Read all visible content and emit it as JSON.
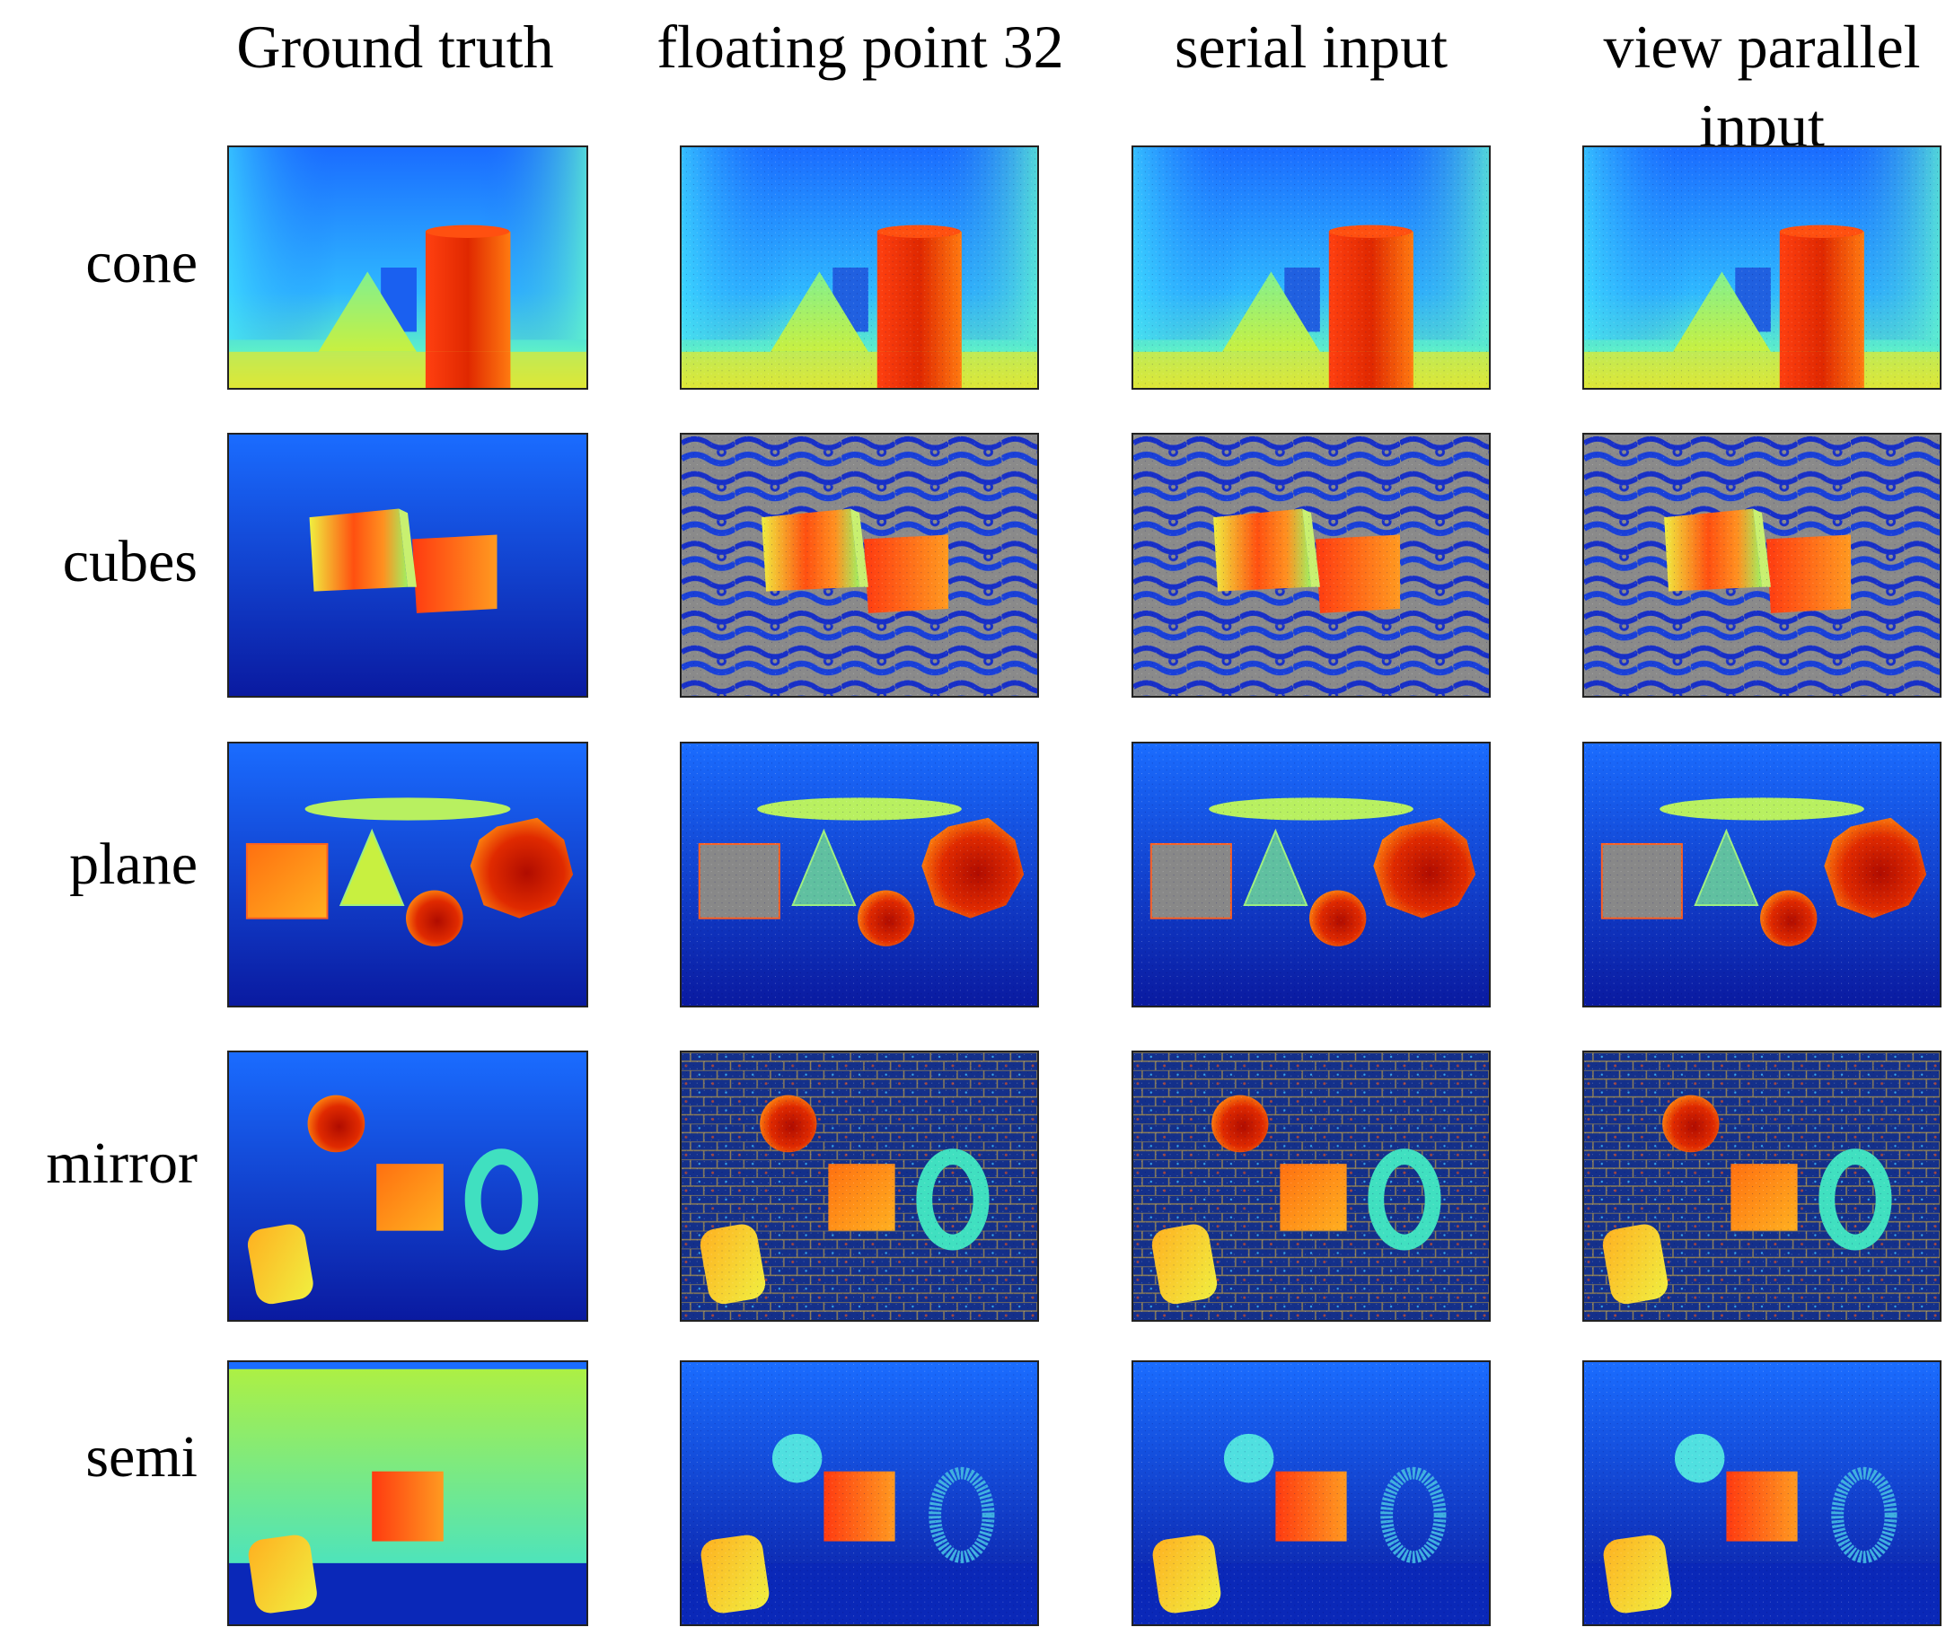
{
  "figure": {
    "columns": [
      {
        "label": "Ground truth"
      },
      {
        "label": "floating point 32"
      },
      {
        "label": "serial input"
      },
      {
        "label": "view parallel input"
      }
    ],
    "rows": [
      {
        "label": "cone",
        "scene": "cone"
      },
      {
        "label": "cubes",
        "scene": "cubes"
      },
      {
        "label": "plane",
        "scene": "plane"
      },
      {
        "label": "mirror",
        "scene": "mirror"
      },
      {
        "label": "semi",
        "scene": "semi"
      }
    ],
    "colormap": "jet",
    "colors": {
      "deep_blue": "#0a1fb0",
      "blue": "#1a6cff",
      "cyan": "#2fd6ff",
      "green_yellow": "#b8f050",
      "orange": "#ff8a10",
      "red": "#d61800",
      "gray_noise": "#8a8a8a"
    }
  }
}
